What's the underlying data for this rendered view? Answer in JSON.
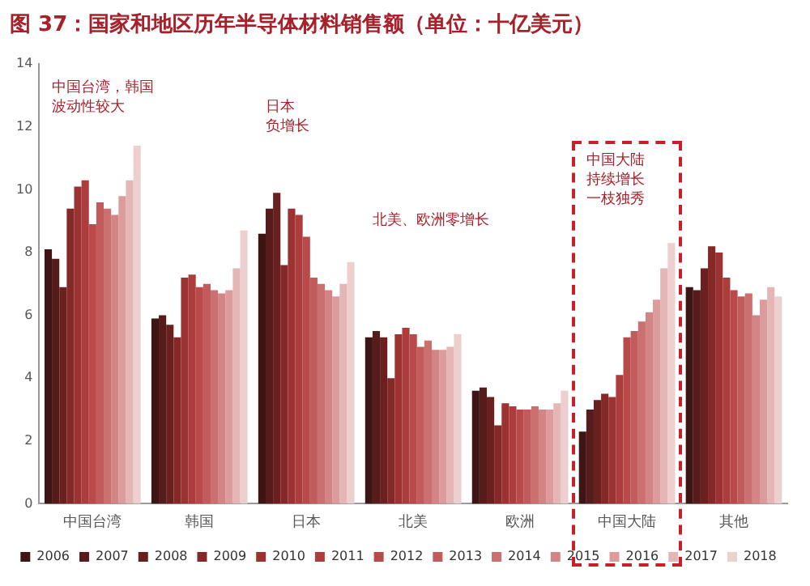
{
  "chart_data": {
    "type": "bar",
    "title": "图 37：国家和地区历年半导体材料销售额（单位：十亿美元）",
    "categories": [
      "中国台湾",
      "韩国",
      "日本",
      "北美",
      "欧洲",
      "中国大陆",
      "其他"
    ],
    "series": [
      {
        "name": "2006",
        "color": "#3d1515",
        "values": [
          8.1,
          5.9,
          8.6,
          5.3,
          3.6,
          2.3,
          6.9
        ]
      },
      {
        "name": "2007",
        "color": "#561b1b",
        "values": [
          7.8,
          6.0,
          9.4,
          5.5,
          3.7,
          3.0,
          6.8
        ]
      },
      {
        "name": "2008",
        "color": "#6b2020",
        "values": [
          6.9,
          5.7,
          9.9,
          5.3,
          3.4,
          3.3,
          7.5
        ]
      },
      {
        "name": "2009",
        "color": "#842828",
        "values": [
          9.4,
          5.3,
          7.6,
          4.0,
          2.5,
          3.5,
          8.2
        ]
      },
      {
        "name": "2010",
        "color": "#9c3232",
        "values": [
          10.1,
          7.2,
          9.4,
          5.4,
          3.2,
          3.4,
          8.0
        ]
      },
      {
        "name": "2011",
        "color": "#ad3d3d",
        "values": [
          10.3,
          7.3,
          9.2,
          5.6,
          3.1,
          4.1,
          7.2
        ]
      },
      {
        "name": "2012",
        "color": "#b84a4a",
        "values": [
          8.9,
          6.9,
          8.5,
          5.4,
          3.0,
          5.3,
          6.8
        ]
      },
      {
        "name": "2013",
        "color": "#c25c5c",
        "values": [
          9.6,
          7.0,
          7.2,
          5.0,
          3.0,
          5.5,
          6.6
        ]
      },
      {
        "name": "2014",
        "color": "#cb7070",
        "values": [
          9.4,
          6.8,
          7.0,
          5.2,
          3.1,
          5.8,
          6.7
        ]
      },
      {
        "name": "2015",
        "color": "#d38484",
        "values": [
          9.2,
          6.7,
          6.8,
          4.9,
          3.0,
          6.1,
          6.0
        ]
      },
      {
        "name": "2016",
        "color": "#dc9c9c",
        "values": [
          9.8,
          6.8,
          6.6,
          4.9,
          3.0,
          6.5,
          6.5
        ]
      },
      {
        "name": "2017",
        "color": "#e5b6b6",
        "values": [
          10.3,
          7.5,
          7.0,
          5.0,
          3.2,
          7.5,
          6.9
        ]
      },
      {
        "name": "2018",
        "color": "#eecfcf",
        "values": [
          11.4,
          8.7,
          7.7,
          5.4,
          3.6,
          8.3,
          6.6
        ]
      }
    ],
    "ylim": [
      0,
      14
    ],
    "yticks": [
      0,
      2,
      4,
      6,
      8,
      10,
      12,
      14
    ],
    "grid": false,
    "legend": "bottom",
    "annotations": [
      "中国台湾，韩国波动性较大",
      "日本负增长",
      "北美、欧洲零增长",
      "中国大陆持续增长一枝独秀"
    ]
  }
}
